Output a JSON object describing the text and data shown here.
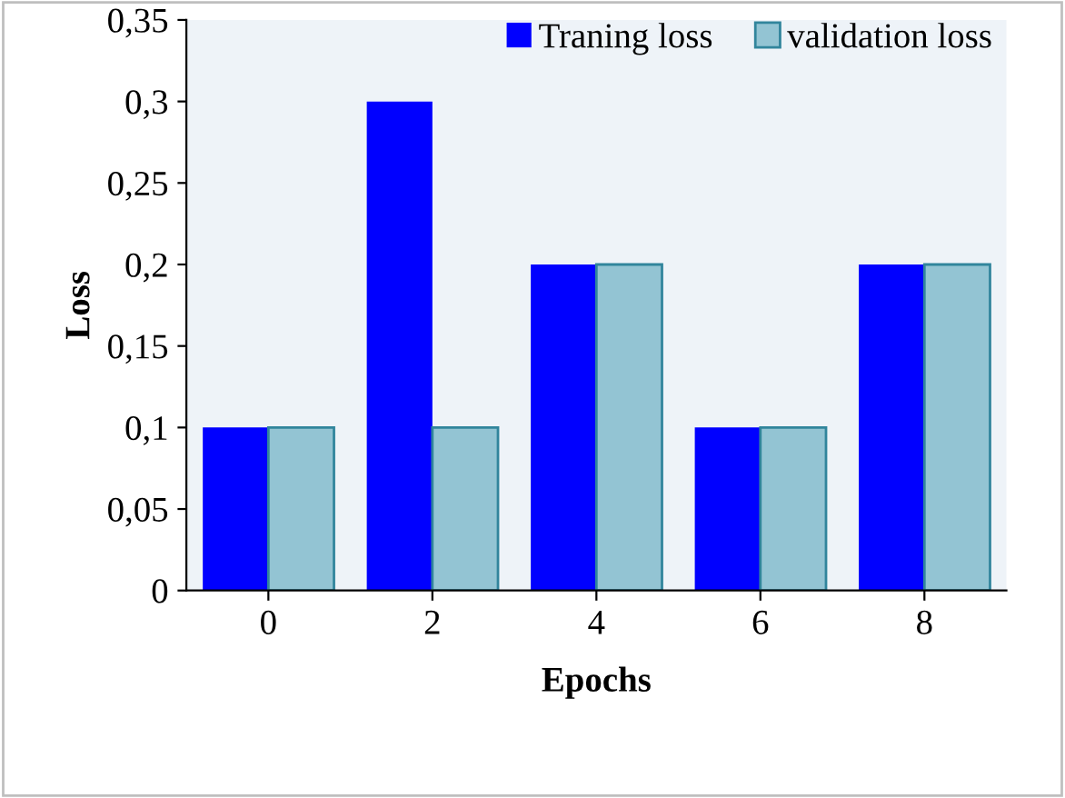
{
  "chart_data": {
    "type": "bar",
    "xlabel": "Epochs",
    "ylabel": "Loss",
    "categories": [
      "0",
      "2",
      "4",
      "6",
      "8"
    ],
    "series": [
      {
        "name": "Traning loss",
        "color": "#0000ff",
        "values": [
          0.1,
          0.3,
          0.2,
          0.1,
          0.2
        ]
      },
      {
        "name": "validation loss",
        "color": "#93c4d3",
        "values": [
          0.1,
          0.1,
          0.2,
          0.1,
          0.2
        ]
      }
    ],
    "ylim": [
      0,
      0.35
    ],
    "yticks": [
      0,
      {
        "value": 0.05,
        "label": "0,05"
      },
      {
        "value": 0.1,
        "label": "0,1"
      },
      {
        "value": 0.15,
        "label": "0,15"
      },
      {
        "value": 0.2,
        "label": "0,2"
      },
      {
        "value": 0.25,
        "label": "0,25"
      },
      {
        "value": 0.3,
        "label": "0,3"
      },
      {
        "value": 0.35,
        "label": "0,35"
      }
    ],
    "grid": false,
    "legend": "top right"
  }
}
